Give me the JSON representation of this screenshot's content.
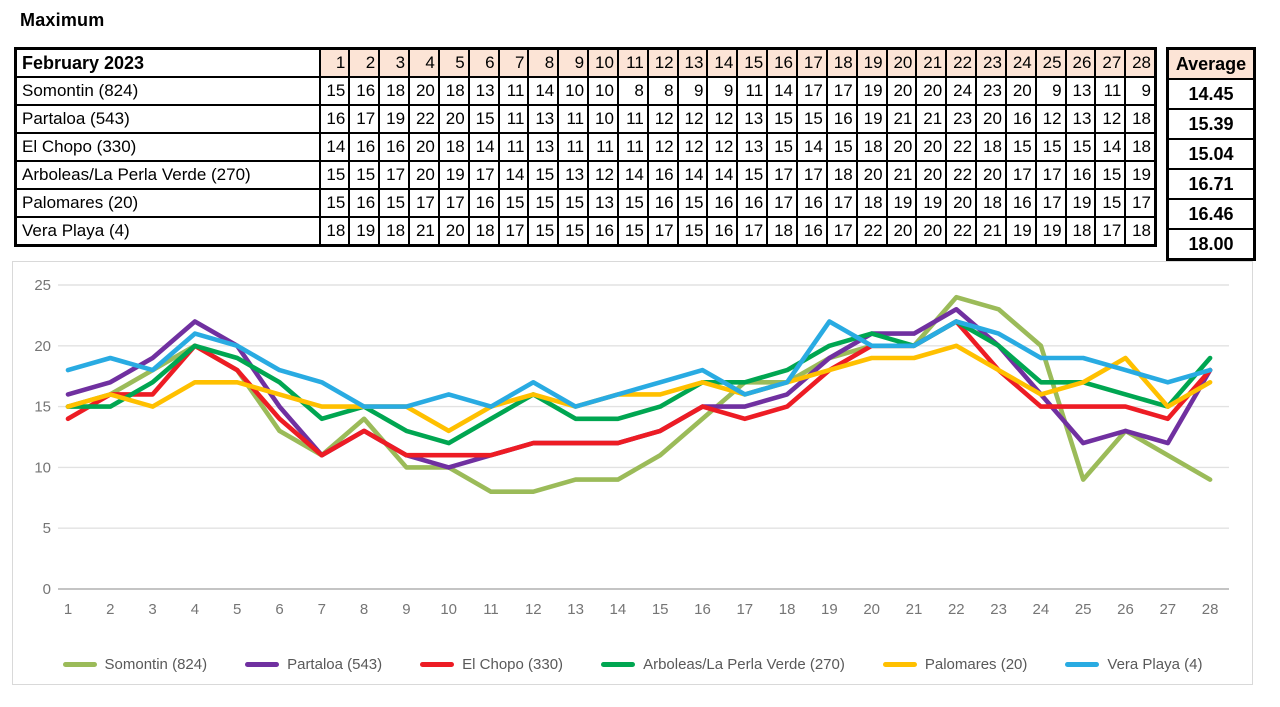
{
  "title": "Maximum",
  "table": {
    "corner_label": "February 2023",
    "day_headers": [
      1,
      2,
      3,
      4,
      5,
      6,
      7,
      8,
      9,
      10,
      11,
      12,
      13,
      14,
      15,
      16,
      17,
      18,
      19,
      20,
      21,
      22,
      23,
      24,
      25,
      26,
      27,
      28
    ],
    "average_header": "Average",
    "header_bg": "#FCE4D6",
    "rows": [
      {
        "label": "Somontin (824)",
        "values": [
          15,
          16,
          18,
          20,
          18,
          13,
          11,
          14,
          10,
          10,
          8,
          8,
          9,
          9,
          11,
          14,
          17,
          17,
          19,
          20,
          20,
          24,
          23,
          20,
          9,
          13,
          11,
          9
        ],
        "average": "14.45"
      },
      {
        "label": "Partaloa (543)",
        "values": [
          16,
          17,
          19,
          22,
          20,
          15,
          11,
          13,
          11,
          10,
          11,
          12,
          12,
          12,
          13,
          15,
          15,
          16,
          19,
          21,
          21,
          23,
          20,
          16,
          12,
          13,
          12,
          18
        ],
        "average": "15.39"
      },
      {
        "label": "El Chopo (330)",
        "values": [
          14,
          16,
          16,
          20,
          18,
          14,
          11,
          13,
          11,
          11,
          11,
          12,
          12,
          12,
          13,
          15,
          14,
          15,
          18,
          20,
          20,
          22,
          18,
          15,
          15,
          15,
          14,
          18
        ],
        "average": "15.04"
      },
      {
        "label": "Arboleas/La Perla Verde (270)",
        "values": [
          15,
          15,
          17,
          20,
          19,
          17,
          14,
          15,
          13,
          12,
          14,
          16,
          14,
          14,
          15,
          17,
          17,
          18,
          20,
          21,
          20,
          22,
          20,
          17,
          17,
          16,
          15,
          19
        ],
        "average": "16.71"
      },
      {
        "label": "Palomares (20)",
        "values": [
          15,
          16,
          15,
          17,
          17,
          16,
          15,
          15,
          15,
          13,
          15,
          16,
          15,
          16,
          16,
          17,
          16,
          17,
          18,
          19,
          19,
          20,
          18,
          16,
          17,
          19,
          15,
          17
        ],
        "average": "16.46"
      },
      {
        "label": "Vera Playa (4)",
        "values": [
          18,
          19,
          18,
          21,
          20,
          18,
          17,
          15,
          15,
          16,
          15,
          17,
          15,
          16,
          17,
          18,
          16,
          17,
          22,
          20,
          20,
          22,
          21,
          19,
          19,
          18,
          17,
          18
        ],
        "average": "18.00"
      }
    ]
  },
  "chart_data": {
    "type": "line",
    "title": "",
    "xlabel": "",
    "ylabel": "",
    "x": [
      1,
      2,
      3,
      4,
      5,
      6,
      7,
      8,
      9,
      10,
      11,
      12,
      13,
      14,
      15,
      16,
      17,
      18,
      19,
      20,
      21,
      22,
      23,
      24,
      25,
      26,
      27,
      28
    ],
    "ylim": [
      0,
      25
    ],
    "yticks": [
      0,
      5,
      10,
      15,
      20,
      25
    ],
    "grid": true,
    "legend_position": "bottom",
    "grid_color": "#E2E2E2",
    "axis_color": "#C4C4C4",
    "tick_label_color": "#757575",
    "legend_text_color": "#595959",
    "series": [
      {
        "name": "Somontin (824)",
        "color": "#9BBB59",
        "values": [
          15,
          16,
          18,
          20,
          18,
          13,
          11,
          14,
          10,
          10,
          8,
          8,
          9,
          9,
          11,
          14,
          17,
          17,
          19,
          20,
          20,
          24,
          23,
          20,
          9,
          13,
          11,
          9
        ]
      },
      {
        "name": "Partaloa (543)",
        "color": "#7030A0",
        "values": [
          16,
          17,
          19,
          22,
          20,
          15,
          11,
          13,
          11,
          10,
          11,
          12,
          12,
          12,
          13,
          15,
          15,
          16,
          19,
          21,
          21,
          23,
          20,
          16,
          12,
          13,
          12,
          18
        ]
      },
      {
        "name": "El Chopo (330)",
        "color": "#ED1C24",
        "values": [
          14,
          16,
          16,
          20,
          18,
          14,
          11,
          13,
          11,
          11,
          11,
          12,
          12,
          12,
          13,
          15,
          14,
          15,
          18,
          20,
          20,
          22,
          18,
          15,
          15,
          15,
          14,
          18
        ]
      },
      {
        "name": "Arboleas/La Perla Verde (270)",
        "color": "#00A651",
        "values": [
          15,
          15,
          17,
          20,
          19,
          17,
          14,
          15,
          13,
          12,
          14,
          16,
          14,
          14,
          15,
          17,
          17,
          18,
          20,
          21,
          20,
          22,
          20,
          17,
          17,
          16,
          15,
          19
        ]
      },
      {
        "name": "Palomares (20)",
        "color": "#FFC000",
        "values": [
          15,
          16,
          15,
          17,
          17,
          16,
          15,
          15,
          15,
          13,
          15,
          16,
          15,
          16,
          16,
          17,
          16,
          17,
          18,
          19,
          19,
          20,
          18,
          16,
          17,
          19,
          15,
          17
        ]
      },
      {
        "name": "Vera Playa (4)",
        "color": "#29ABE2",
        "values": [
          18,
          19,
          18,
          21,
          20,
          18,
          17,
          15,
          15,
          16,
          15,
          17,
          15,
          16,
          17,
          18,
          16,
          17,
          22,
          20,
          20,
          22,
          21,
          19,
          19,
          18,
          17,
          18
        ]
      }
    ]
  }
}
